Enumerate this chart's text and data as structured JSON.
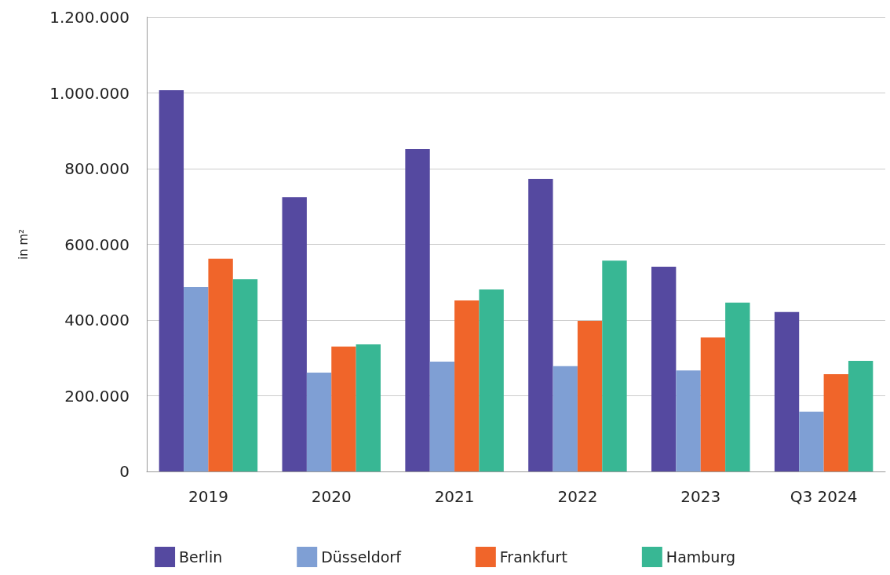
{
  "chart_data": {
    "type": "bar",
    "ylabel": "in m²",
    "categories": [
      "2019",
      "2020",
      "2021",
      "2022",
      "2023",
      "Q3 2024"
    ],
    "series": [
      {
        "name": "Berlin",
        "color": "#5549a0",
        "values": [
          1007000,
          725000,
          852000,
          773000,
          541000,
          421000
        ]
      },
      {
        "name": "Düsseldorf",
        "color": "#7f9fd4",
        "values": [
          487000,
          261000,
          290000,
          278000,
          267000,
          158000
        ]
      },
      {
        "name": "Frankfurt",
        "color": "#f0652a",
        "values": [
          562000,
          330000,
          452000,
          398000,
          354000,
          257000
        ]
      },
      {
        "name": "Hamburg",
        "color": "#38b794",
        "values": [
          508000,
          336000,
          481000,
          557000,
          446000,
          292000
        ]
      }
    ],
    "ylim": [
      0,
      1200000
    ],
    "yticks": [
      0,
      {
        "value": 200000,
        "label": "200.000"
      },
      {
        "value": 400000,
        "label": "400.000"
      },
      {
        "value": 600000,
        "label": "600.000"
      },
      {
        "value": 800000,
        "label": "800.000"
      },
      {
        "value": 1000000,
        "label": "1.000.000"
      },
      {
        "value": 1200000,
        "label": "1.200.000"
      }
    ],
    "grid": "y",
    "legend": "bottom"
  }
}
